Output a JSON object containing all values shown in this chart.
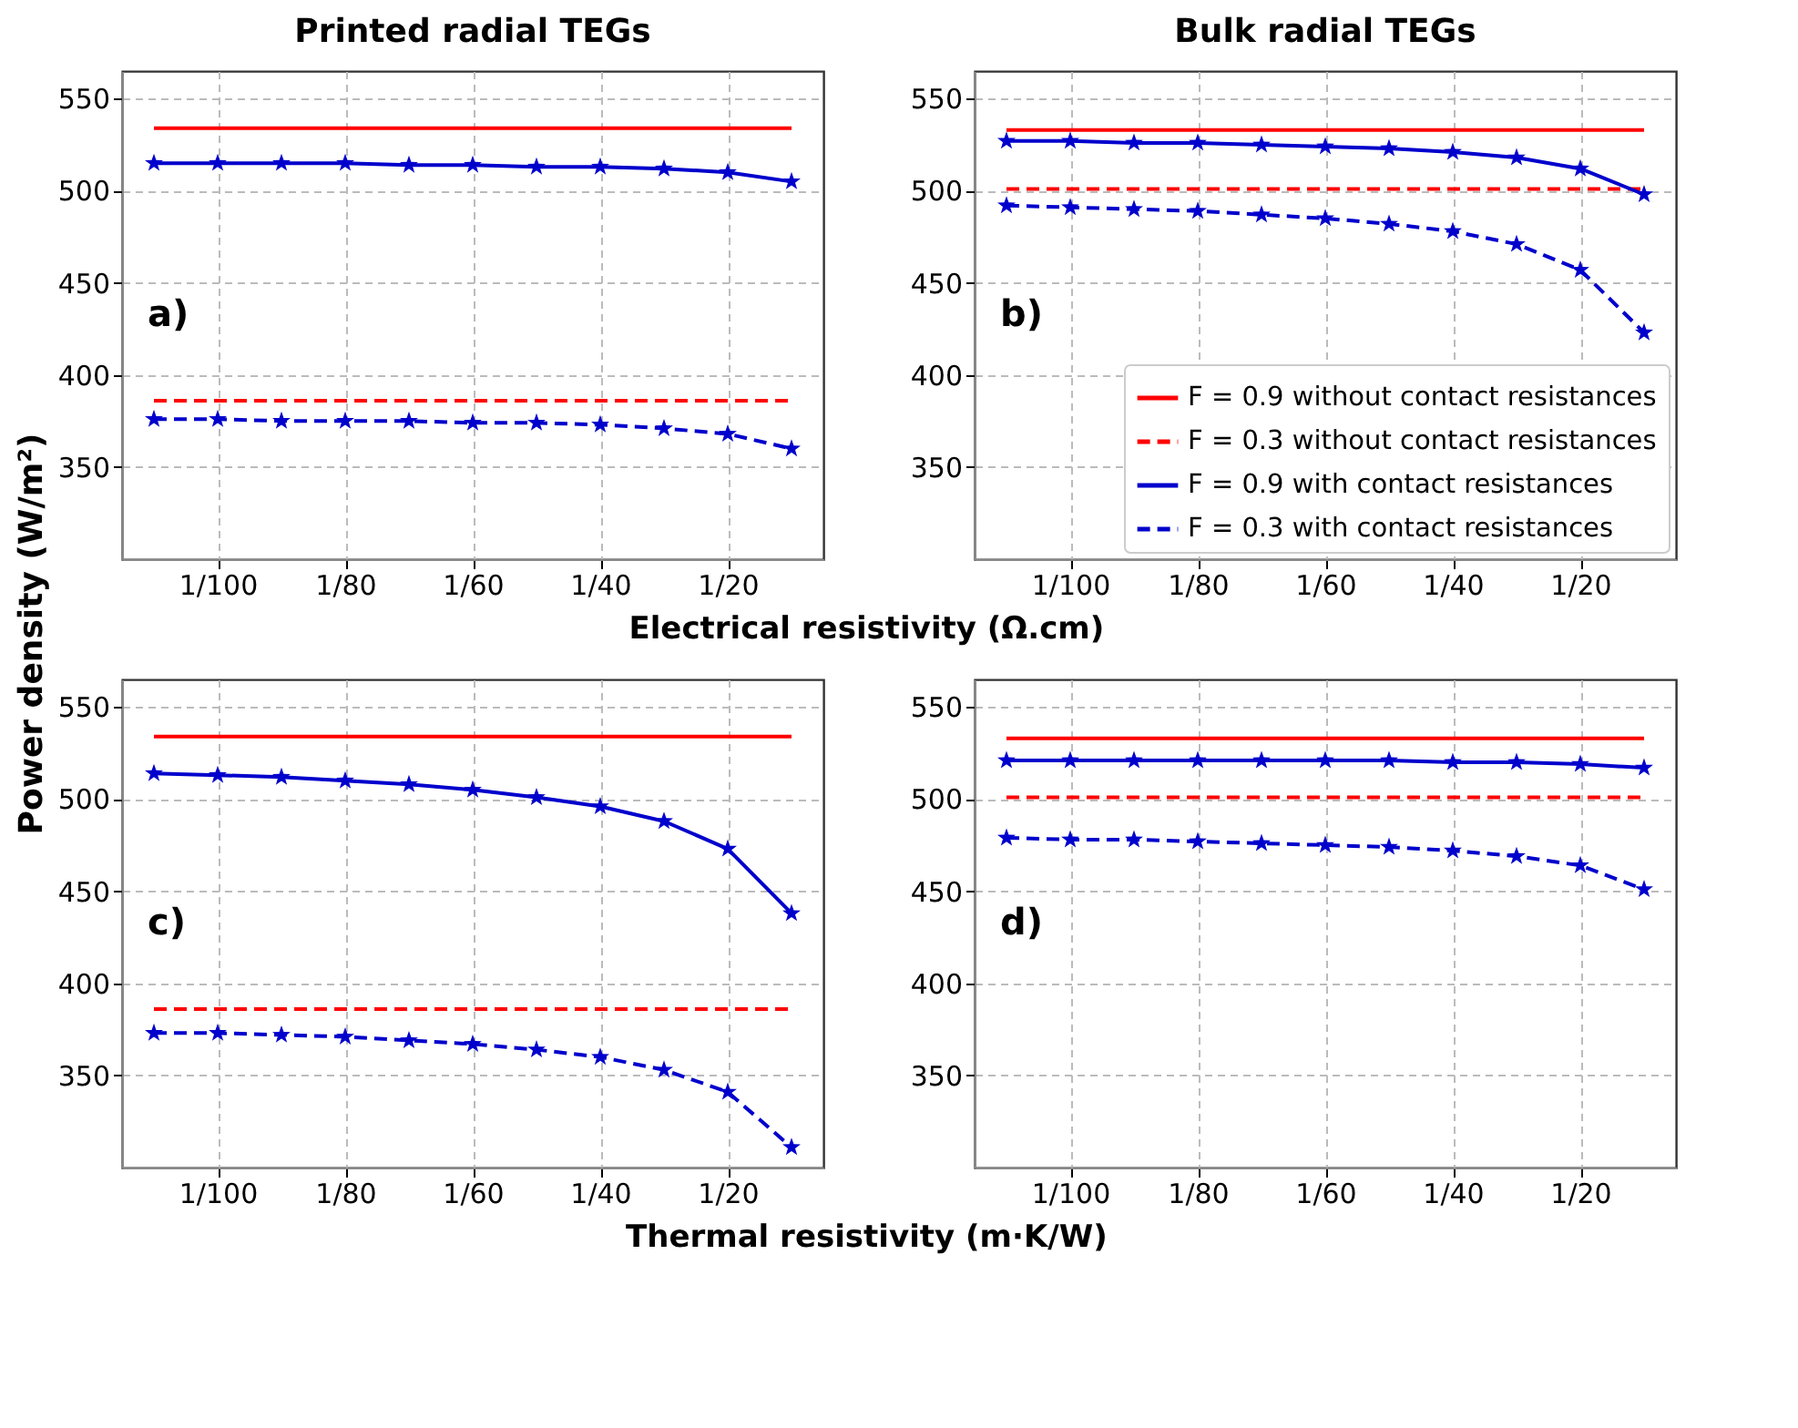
{
  "chart_data": [
    {
      "type": "line",
      "title": "Printed radial TEGs",
      "xlabel": "Electrical resistivity (Ω.cm)",
      "ylabel": "Power density (W/m²)",
      "categories": [
        null,
        "1/100",
        null,
        "1/80",
        null,
        "1/60",
        null,
        "1/40",
        null,
        "1/20",
        null
      ],
      "ylim": [
        300,
        565
      ],
      "yticks": [
        350,
        400,
        450,
        500,
        550
      ],
      "grid": true,
      "annotations": [
        "a)"
      ],
      "series": [
        {
          "color": "#ff0000",
          "line_style": "solid",
          "marker": "none",
          "values": [
            534,
            534,
            534,
            534,
            534,
            534,
            534,
            534,
            534,
            534,
            534
          ]
        },
        {
          "color": "#ff0000",
          "line_style": "dashed",
          "marker": "none",
          "values": [
            386,
            386,
            386,
            386,
            386,
            386,
            386,
            386,
            386,
            386,
            386
          ]
        },
        {
          "color": "#0000cc",
          "line_style": "solid",
          "marker": "star",
          "values": [
            515,
            515,
            515,
            515,
            514,
            514,
            513,
            513,
            512,
            510,
            505
          ]
        },
        {
          "color": "#0000cc",
          "line_style": "dashed",
          "marker": "star",
          "values": [
            376,
            376,
            375,
            375,
            375,
            374,
            374,
            373,
            371,
            368,
            360
          ]
        }
      ]
    },
    {
      "type": "line",
      "title": "Bulk radial TEGs",
      "categories": [
        null,
        "1/100",
        null,
        "1/80",
        null,
        "1/60",
        null,
        "1/40",
        null,
        "1/20",
        null
      ],
      "ylim": [
        300,
        565
      ],
      "yticks": [
        350,
        400,
        450,
        500,
        550
      ],
      "grid": true,
      "legend": "bottom right",
      "annotations": [
        "b)"
      ],
      "series": [
        {
          "name": "F = 0.9 without contact resistances",
          "color": "#ff0000",
          "line_style": "solid",
          "marker": "none",
          "values": [
            533,
            533,
            533,
            533,
            533,
            533,
            533,
            533,
            533,
            533,
            533
          ]
        },
        {
          "name": "F = 0.3 without contact resistances",
          "color": "#ff0000",
          "line_style": "dashed",
          "marker": "none",
          "values": [
            501,
            501,
            501,
            501,
            501,
            501,
            501,
            501,
            501,
            501,
            501
          ]
        },
        {
          "name": "F = 0.9 with contact resistances",
          "color": "#0000cc",
          "line_style": "solid",
          "marker": "star",
          "values": [
            527,
            527,
            526,
            526,
            525,
            524,
            523,
            521,
            518,
            512,
            498
          ]
        },
        {
          "name": "F = 0.3 with contact resistances",
          "color": "#0000cc",
          "line_style": "dashed",
          "marker": "star",
          "values": [
            492,
            491,
            490,
            489,
            487,
            485,
            482,
            478,
            471,
            457,
            423
          ]
        }
      ]
    },
    {
      "type": "line",
      "xlabel": "Thermal resistivity (m·K/W)",
      "categories": [
        null,
        "1/100",
        null,
        "1/80",
        null,
        "1/60",
        null,
        "1/40",
        null,
        "1/20",
        null
      ],
      "ylim": [
        300,
        565
      ],
      "yticks": [
        350,
        400,
        450,
        500,
        550
      ],
      "grid": true,
      "annotations": [
        "c)"
      ],
      "series": [
        {
          "color": "#ff0000",
          "line_style": "solid",
          "marker": "none",
          "values": [
            534,
            534,
            534,
            534,
            534,
            534,
            534,
            534,
            534,
            534,
            534
          ]
        },
        {
          "color": "#ff0000",
          "line_style": "dashed",
          "marker": "none",
          "values": [
            386,
            386,
            386,
            386,
            386,
            386,
            386,
            386,
            386,
            386,
            386
          ]
        },
        {
          "color": "#0000cc",
          "line_style": "solid",
          "marker": "star",
          "values": [
            514,
            513,
            512,
            510,
            508,
            505,
            501,
            496,
            488,
            473,
            438
          ]
        },
        {
          "color": "#0000cc",
          "line_style": "dashed",
          "marker": "star",
          "values": [
            373,
            373,
            372,
            371,
            369,
            367,
            364,
            360,
            353,
            341,
            311
          ]
        }
      ]
    },
    {
      "type": "line",
      "categories": [
        null,
        "1/100",
        null,
        "1/80",
        null,
        "1/60",
        null,
        "1/40",
        null,
        "1/20",
        null
      ],
      "ylim": [
        300,
        565
      ],
      "yticks": [
        350,
        400,
        450,
        500,
        550
      ],
      "grid": true,
      "annotations": [
        "d)"
      ],
      "series": [
        {
          "color": "#ff0000",
          "line_style": "solid",
          "marker": "none",
          "values": [
            533,
            533,
            533,
            533,
            533,
            533,
            533,
            533,
            533,
            533,
            533
          ]
        },
        {
          "color": "#ff0000",
          "line_style": "dashed",
          "marker": "none",
          "values": [
            501,
            501,
            501,
            501,
            501,
            501,
            501,
            501,
            501,
            501,
            501
          ]
        },
        {
          "color": "#0000cc",
          "line_style": "solid",
          "marker": "star",
          "values": [
            521,
            521,
            521,
            521,
            521,
            521,
            521,
            520,
            520,
            519,
            517
          ]
        },
        {
          "color": "#0000cc",
          "line_style": "dashed",
          "marker": "star",
          "values": [
            479,
            478,
            478,
            477,
            476,
            475,
            474,
            472,
            469,
            464,
            451
          ]
        }
      ]
    }
  ]
}
